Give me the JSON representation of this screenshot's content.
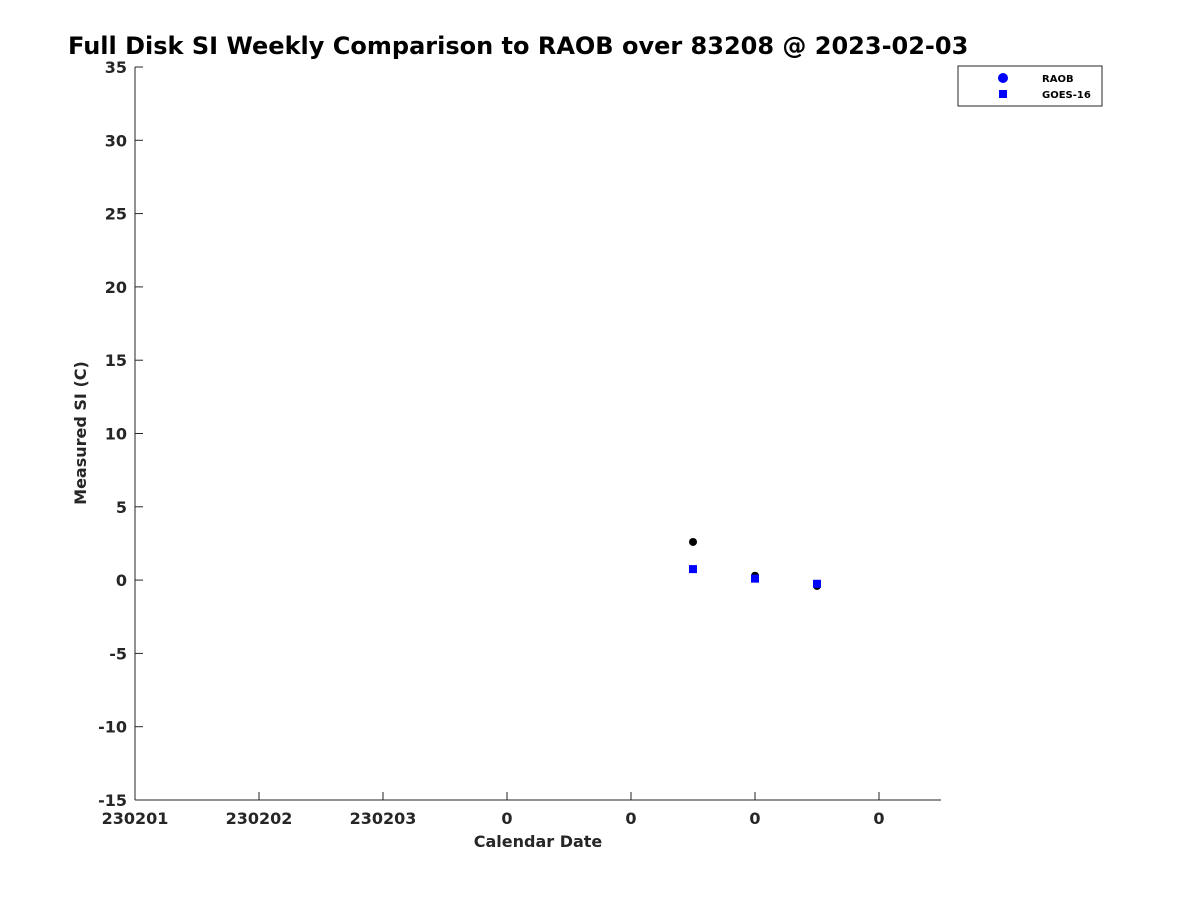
{
  "chart_data": {
    "type": "scatter",
    "title": "Full Disk SI Weekly Comparison to RAOB over 83208 @ 2023-02-03",
    "xlabel": "Calendar Date",
    "ylabel": "Measured SI (C)",
    "ylim": [
      -15,
      35
    ],
    "yticks": [
      -15,
      -10,
      -5,
      0,
      5,
      10,
      15,
      20,
      25,
      30,
      35
    ],
    "xlim": [
      0,
      6.5
    ],
    "xticks": [
      0,
      1,
      2,
      3,
      4,
      5,
      6
    ],
    "xtick_labels": [
      "230201",
      "230202",
      "230203",
      "0",
      "0",
      "0",
      "0"
    ],
    "grid": false,
    "legend_position": "top-right",
    "series": [
      {
        "name": "RAOB",
        "marker": "circle",
        "color": "#000000",
        "legend_color": "#0000ff",
        "points": [
          {
            "x": 4.5,
            "y": 2.6
          },
          {
            "x": 5.0,
            "y": 0.3
          },
          {
            "x": 5.5,
            "y": -0.4
          }
        ]
      },
      {
        "name": "GOES-16",
        "marker": "square",
        "color": "#0000ff",
        "legend_color": "#0000ff",
        "points": [
          {
            "x": 4.5,
            "y": 0.75
          },
          {
            "x": 5.0,
            "y": 0.1
          },
          {
            "x": 5.5,
            "y": -0.25
          }
        ]
      }
    ]
  }
}
